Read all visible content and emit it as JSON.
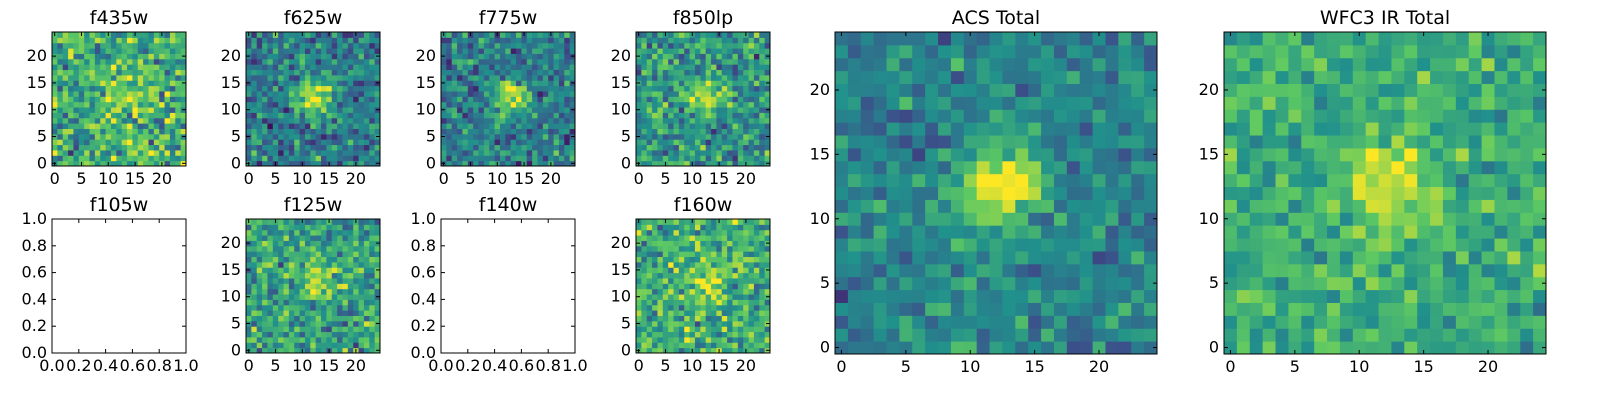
{
  "figure": {
    "colormap": "viridis",
    "background": "#ffffff"
  },
  "chart_data": [
    {
      "type": "heatmap",
      "title": "f435w",
      "empty": false,
      "xticks": [
        0,
        5,
        10,
        15,
        20
      ],
      "yticks": [
        0,
        5,
        10,
        15,
        20
      ],
      "xlim": [
        -0.5,
        24.5
      ],
      "ylim": [
        -0.5,
        24.5
      ],
      "source_amp": 0.25,
      "noise": 0.32,
      "base": 0.62
    },
    {
      "type": "heatmap",
      "title": "f625w",
      "empty": false,
      "xticks": [
        0,
        5,
        10,
        15,
        20
      ],
      "yticks": [
        0,
        5,
        10,
        15,
        20
      ],
      "xlim": [
        -0.5,
        24.5
      ],
      "ylim": [
        -0.5,
        24.5
      ],
      "source_amp": 0.55,
      "noise": 0.28,
      "base": 0.42
    },
    {
      "type": "heatmap",
      "title": "f775w",
      "empty": false,
      "xticks": [
        0,
        5,
        10,
        15,
        20
      ],
      "yticks": [
        0,
        5,
        10,
        15,
        20
      ],
      "xlim": [
        -0.5,
        24.5
      ],
      "ylim": [
        -0.5,
        24.5
      ],
      "source_amp": 0.55,
      "noise": 0.28,
      "base": 0.42
    },
    {
      "type": "heatmap",
      "title": "f850lp",
      "empty": false,
      "xticks": [
        0,
        5,
        10,
        15,
        20
      ],
      "yticks": [
        0,
        5,
        10,
        15,
        20
      ],
      "xlim": [
        -0.5,
        24.5
      ],
      "ylim": [
        -0.5,
        24.5
      ],
      "source_amp": 0.4,
      "noise": 0.3,
      "base": 0.52
    },
    {
      "type": "heatmap",
      "title": "f105w",
      "empty": true,
      "xticks": [
        "0.0",
        "0.2",
        "0.4",
        "0.6",
        "0.8",
        "1.0"
      ],
      "yticks": [
        "0.0",
        "0.2",
        "0.4",
        "0.6",
        "0.8",
        "1.0"
      ],
      "xlim": [
        0,
        1
      ],
      "ylim": [
        0,
        1
      ]
    },
    {
      "type": "heatmap",
      "title": "f125w",
      "empty": false,
      "xticks": [
        0,
        5,
        10,
        15,
        20
      ],
      "yticks": [
        0,
        5,
        10,
        15,
        20
      ],
      "xlim": [
        -0.5,
        24.5
      ],
      "ylim": [
        -0.5,
        24.5
      ],
      "source_amp": 0.35,
      "noise": 0.3,
      "base": 0.58
    },
    {
      "type": "heatmap",
      "title": "f140w",
      "empty": true,
      "xticks": [
        "0.0",
        "0.2",
        "0.4",
        "0.6",
        "0.8",
        "1.0"
      ],
      "yticks": [
        "0.0",
        "0.2",
        "0.4",
        "0.6",
        "0.8",
        "1.0"
      ],
      "xlim": [
        0,
        1
      ],
      "ylim": [
        0,
        1
      ]
    },
    {
      "type": "heatmap",
      "title": "f160w",
      "empty": false,
      "xticks": [
        0,
        5,
        10,
        15,
        20
      ],
      "yticks": [
        0,
        5,
        10,
        15,
        20
      ],
      "xlim": [
        -0.5,
        24.5
      ],
      "ylim": [
        -0.5,
        24.5
      ],
      "source_amp": 0.35,
      "noise": 0.3,
      "base": 0.62
    },
    {
      "type": "heatmap",
      "title": "ACS Total",
      "empty": false,
      "xticks": [
        0,
        5,
        10,
        15,
        20
      ],
      "yticks": [
        0,
        5,
        10,
        15,
        20
      ],
      "xlim": [
        -0.5,
        24.5
      ],
      "ylim": [
        -0.5,
        24.5
      ],
      "source_amp": 0.6,
      "noise": 0.2,
      "base": 0.45
    },
    {
      "type": "heatmap",
      "title": "WFC3 IR Total",
      "empty": false,
      "xticks": [
        0,
        5,
        10,
        15,
        20
      ],
      "yticks": [
        0,
        5,
        10,
        15,
        20
      ],
      "xlim": [
        -0.5,
        24.5
      ],
      "ylim": [
        -0.5,
        24.5
      ],
      "source_amp": 0.35,
      "noise": 0.2,
      "base": 0.62
    }
  ]
}
